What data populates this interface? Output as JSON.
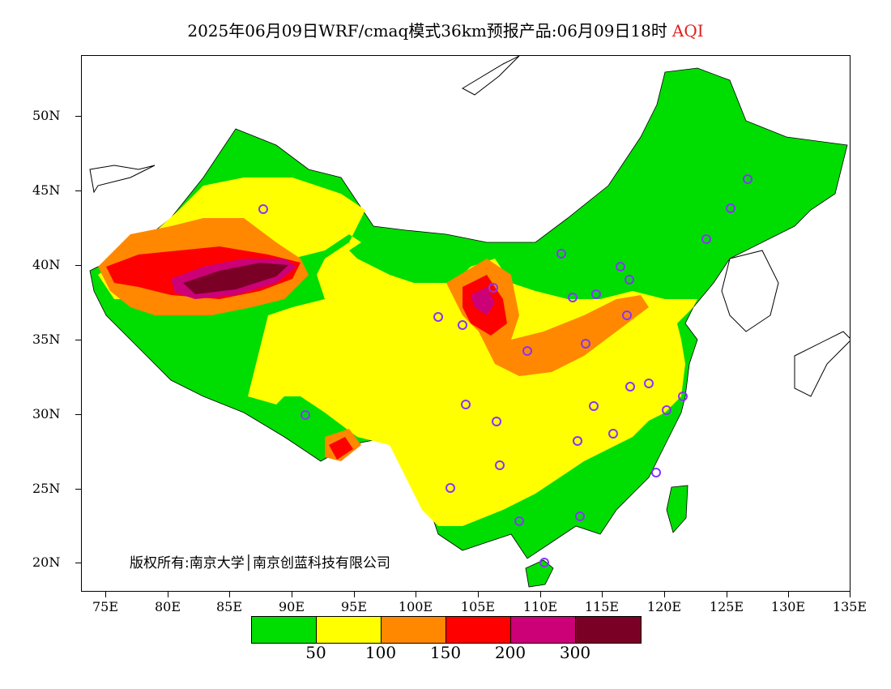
{
  "title": {
    "text": "2025年06月09日WRF/cmaq模式36km预报产品:06月09日18时",
    "variable": "AQI"
  },
  "axes": {
    "y_labels": [
      "50N",
      "45N",
      "40N",
      "35N",
      "30N",
      "25N",
      "20N"
    ],
    "x_labels": [
      "75E",
      "80E",
      "85E",
      "90E",
      "95E",
      "100E",
      "105E",
      "110E",
      "115E",
      "120E",
      "125E",
      "130E",
      "135E"
    ]
  },
  "copyright": "版权所有:南京大学│南京创蓝科技有限公司",
  "legend": {
    "colors": [
      "#00dd00",
      "#ffff00",
      "#ff8800",
      "#ff0000",
      "#cc0077",
      "#7a0026"
    ],
    "labels": [
      "50",
      "100",
      "150",
      "200",
      "300"
    ]
  },
  "colors": {
    "land_default": "#00dd00",
    "boundary": "#000000",
    "station_marker": "#8833ff",
    "title_accent": "#e02020"
  }
}
